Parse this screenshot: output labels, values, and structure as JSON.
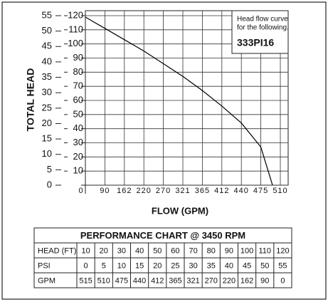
{
  "chart_data": {
    "type": "line",
    "annotation": [
      "Head flow curve",
      "for the following."
    ],
    "model": "333PI16",
    "ylabel": "TOTAL HEAD",
    "xlabel": "FLOW (GPM)",
    "series": [
      {
        "color": "#000000",
        "x": [
          0,
          90,
          162,
          220,
          270,
          321,
          365,
          412,
          440,
          475,
          496
        ],
        "values": [
          119,
          111,
          103,
          95,
          86,
          77,
          67,
          56,
          44,
          27,
          0
        ]
      }
    ],
    "xticks": [
      0,
      90,
      162,
      220,
      270,
      321,
      365,
      412,
      440,
      475,
      510
    ],
    "ylim": [
      0,
      120
    ],
    "yticks": [
      0,
      10,
      20,
      30,
      40,
      50,
      60,
      70,
      80,
      90,
      100,
      110,
      120
    ],
    "y2lim": [
      0,
      55
    ],
    "y2ticks": [
      0,
      5,
      10,
      15,
      20,
      25,
      30,
      35,
      40,
      45,
      50,
      55
    ],
    "grid": true
  },
  "table": {
    "title": "PERFORMANCE CHART @ 3450 RPM",
    "rows": [
      [
        "HEAD (FT)",
        10,
        20,
        30,
        40,
        50,
        60,
        70,
        80,
        90,
        100,
        110,
        120
      ],
      [
        "PSI",
        0,
        5,
        10,
        15,
        20,
        25,
        30,
        35,
        40,
        45,
        50,
        55
      ],
      [
        "GPM",
        515,
        510,
        475,
        440,
        412,
        365,
        321,
        270,
        220,
        162,
        90,
        0
      ]
    ]
  }
}
